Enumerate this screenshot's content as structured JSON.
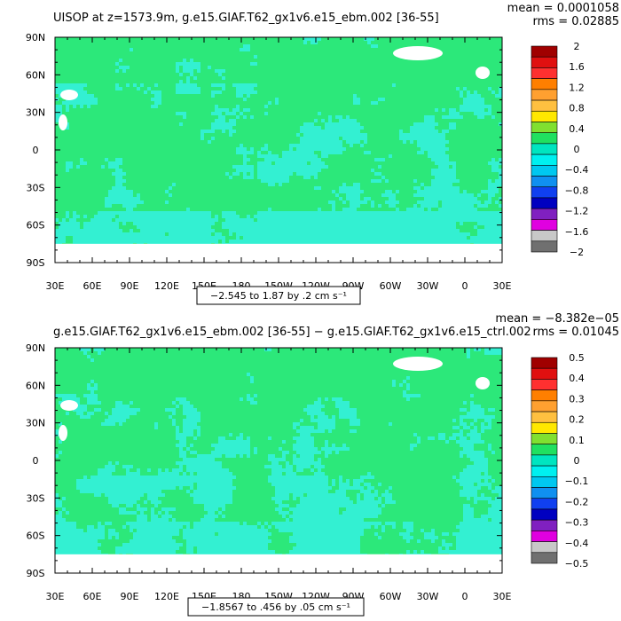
{
  "chart_data": [
    {
      "type": "heatmap",
      "title": "UISOP at z=1573.9m, g.e15.GIAF.T62_gx1v6.e15_ebm.002 [36-55]",
      "stats": {
        "mean": "mean = 0.0001058",
        "rms": "rms = 0.02885"
      },
      "range_label": "−2.545 to 1.87 by .2 cm s⁻¹",
      "x_ticks": [
        "30E",
        "60E",
        "90E",
        "120E",
        "150E",
        "180",
        "150W",
        "120W",
        "90W",
        "60W",
        "30W",
        "0",
        "30E"
      ],
      "y_ticks": [
        "90N",
        "60N",
        "30N",
        "0",
        "30S",
        "60S",
        "90S"
      ],
      "colorbar": {
        "labels": [
          "2",
          "1.6",
          "1.2",
          "0.8",
          "0.4",
          "0",
          "−0.4",
          "−0.8",
          "−1.2",
          "−1.6",
          "−2"
        ],
        "levels": [
          2,
          1.6,
          1.2,
          0.8,
          0.4,
          0,
          -0.4,
          -0.8,
          -1.2,
          -1.6,
          -2
        ],
        "colors": [
          "#a00000",
          "#e01010",
          "#ff3030",
          "#ff7f00",
          "#ffa030",
          "#ffc040",
          "#ffe800",
          "#80e030",
          "#20e060",
          "#00e5c0",
          "#00f0f0",
          "#00c8f0",
          "#1090f0",
          "#1040f0",
          "#0000c0",
          "#8020c0",
          "#e000e0",
          "#c8c8c8",
          "#707070"
        ]
      }
    },
    {
      "type": "heatmap",
      "title": "g.e15.GIAF.T62_gx1v6.e15_ebm.002 [36-55] − g.e15.GIAF.T62_gx1v6.e15_ctrl.002",
      "stats": {
        "mean": "mean = −8.382e−05",
        "rms": "rms = 0.01045"
      },
      "range_label": "−1.8567 to .456 by .05 cm s⁻¹",
      "x_ticks": [
        "30E",
        "60E",
        "90E",
        "120E",
        "150E",
        "180",
        "150W",
        "120W",
        "90W",
        "60W",
        "30W",
        "0",
        "30E"
      ],
      "y_ticks": [
        "90N",
        "60N",
        "30N",
        "0",
        "30S",
        "60S",
        "90S"
      ],
      "colorbar": {
        "labels": [
          "0.5",
          "0.4",
          "0.3",
          "0.2",
          "0.1",
          "0",
          "−0.1",
          "−0.2",
          "−0.3",
          "−0.4",
          "−0.5"
        ],
        "levels": [
          0.5,
          0.4,
          0.3,
          0.2,
          0.1,
          0,
          -0.1,
          -0.2,
          -0.3,
          -0.4,
          -0.5
        ],
        "colors": [
          "#a00000",
          "#e01010",
          "#ff3030",
          "#ff7f00",
          "#ffa030",
          "#ffc040",
          "#ffe800",
          "#80e030",
          "#20e060",
          "#00e5c0",
          "#00f0f0",
          "#00c8f0",
          "#1090f0",
          "#1040f0",
          "#0000c0",
          "#8020c0",
          "#e000e0",
          "#c8c8c8",
          "#707070"
        ]
      }
    }
  ],
  "colors": {
    "field_green": "#2ce87a",
    "field_cyan": "#33f0d2",
    "land": "#ffffff"
  }
}
